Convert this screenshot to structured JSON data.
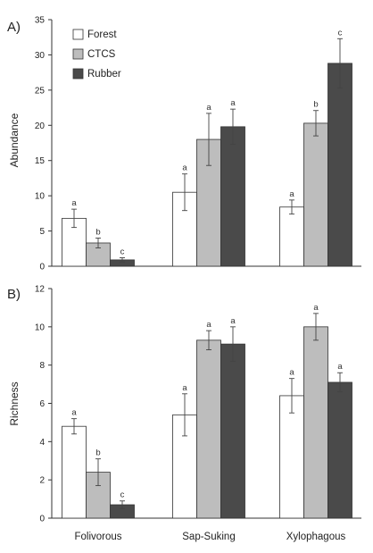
{
  "chart_data": [
    {
      "type": "bar",
      "panel_label": "A)",
      "ylabel": "Abundance",
      "ylim": [
        0,
        35
      ],
      "yticks": [
        "0",
        "5",
        "10",
        "15",
        "20",
        "25",
        "30",
        "35"
      ],
      "categories": [
        "Folivorous",
        "Sap-Suking",
        "Xylophagous"
      ],
      "legend": {
        "placement": "top-left",
        "entries": [
          "Forest",
          "CTCS",
          "Rubber"
        ]
      },
      "series": [
        {
          "name": "Forest",
          "color": "#ffffff",
          "values": [
            6.8,
            10.5,
            8.4
          ],
          "errors": [
            1.3,
            2.6,
            1.0
          ],
          "letters": [
            "a",
            "a",
            "a"
          ]
        },
        {
          "name": "CTCS",
          "color": "#bdbdbd",
          "values": [
            3.3,
            18.0,
            20.3
          ],
          "errors": [
            0.7,
            3.7,
            1.8
          ],
          "letters": [
            "b",
            "a",
            "b"
          ]
        },
        {
          "name": "Rubber",
          "color": "#4a4a4a",
          "values": [
            0.9,
            19.8,
            28.8
          ],
          "errors": [
            0.3,
            2.5,
            3.5
          ],
          "letters": [
            "c",
            "a",
            "c"
          ]
        }
      ]
    },
    {
      "type": "bar",
      "panel_label": "B)",
      "ylabel": "Richness",
      "ylim": [
        0,
        12
      ],
      "yticks": [
        "0",
        "2",
        "4",
        "6",
        "8",
        "10",
        "12"
      ],
      "categories": [
        "Folivorous",
        "Sap-Suking",
        "Xylophagous"
      ],
      "series": [
        {
          "name": "Forest",
          "color": "#ffffff",
          "values": [
            4.8,
            5.4,
            6.4
          ],
          "errors": [
            0.4,
            1.1,
            0.9
          ],
          "letters": [
            "a",
            "a",
            "a"
          ]
        },
        {
          "name": "CTCS",
          "color": "#bdbdbd",
          "values": [
            2.4,
            9.3,
            10.0
          ],
          "errors": [
            0.7,
            0.5,
            0.7
          ],
          "letters": [
            "b",
            "a",
            "a"
          ]
        },
        {
          "name": "Rubber",
          "color": "#4a4a4a",
          "values": [
            0.7,
            9.1,
            7.1
          ],
          "errors": [
            0.2,
            0.9,
            0.5
          ],
          "letters": [
            "c",
            "a",
            "a"
          ]
        }
      ]
    }
  ]
}
